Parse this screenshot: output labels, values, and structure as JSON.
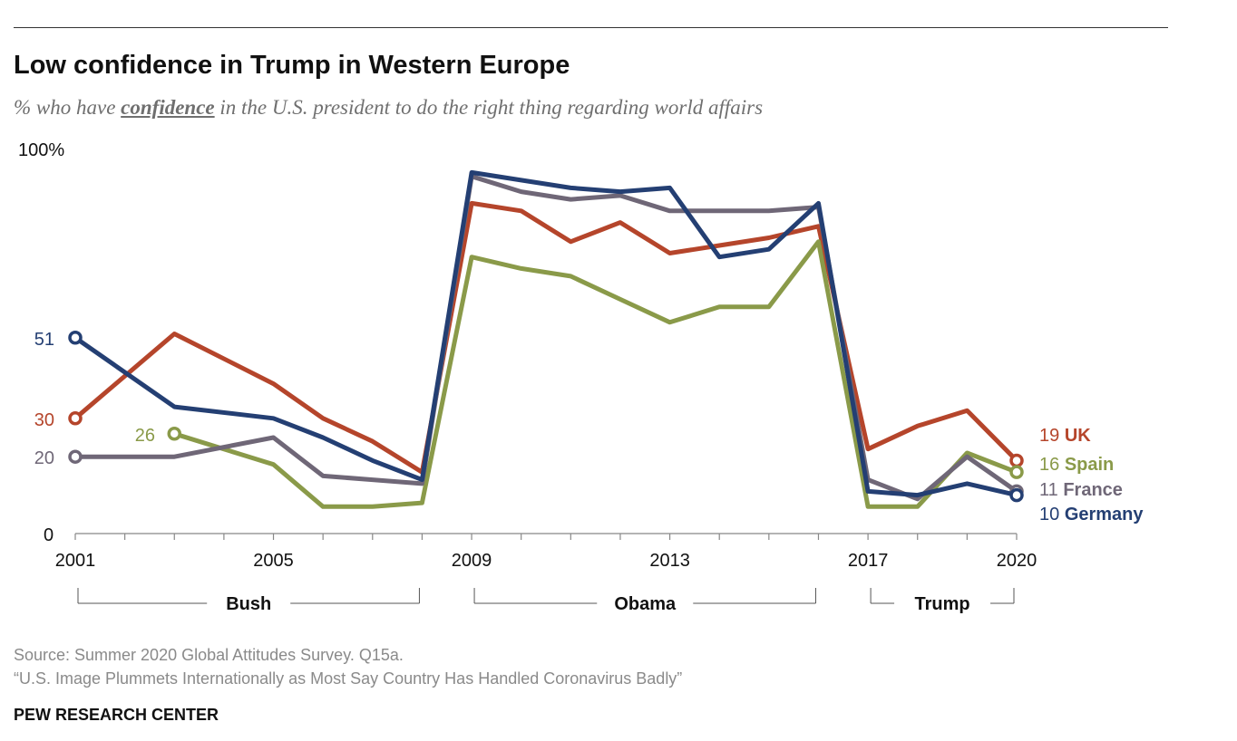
{
  "header": {
    "title": "Low confidence in Trump in Western Europe",
    "subtitle_pre": "% who have ",
    "subtitle_em": "confidence",
    "subtitle_post": " in the U.S. president to do the right thing regarding world affairs"
  },
  "chart_data": {
    "type": "line",
    "title": "Low confidence in Trump in Western Europe",
    "ylim": [
      0,
      100
    ],
    "y_top_label": "100%",
    "y_zero_label": "0",
    "x": [
      2001,
      2002,
      2003,
      2004,
      2005,
      2006,
      2007,
      2008,
      2009,
      2010,
      2011,
      2012,
      2013,
      2014,
      2015,
      2016,
      2017,
      2018,
      2019,
      2020
    ],
    "x_tick_labels": [
      "2001",
      "2005",
      "2009",
      "2013",
      "2017",
      "2020"
    ],
    "x_tick_values": [
      2001,
      2005,
      2009,
      2013,
      2017,
      2020
    ],
    "series": [
      {
        "name": "UK",
        "color": "#b5452b",
        "start_label": "30",
        "end_label_value": "19",
        "end_label_name": "UK",
        "values": [
          30,
          null,
          52,
          null,
          39,
          30,
          24,
          16,
          86,
          84,
          76,
          81,
          73,
          75,
          77,
          80,
          22,
          28,
          32,
          19
        ]
      },
      {
        "name": "Spain",
        "color": "#8a9a49",
        "start_label": "26",
        "end_label_value": "16",
        "end_label_name": "Spain",
        "values": [
          null,
          null,
          26,
          null,
          18,
          7,
          7,
          8,
          72,
          69,
          67,
          61,
          55,
          59,
          59,
          76,
          7,
          7,
          21,
          16
        ]
      },
      {
        "name": "France",
        "color": "#6f6777",
        "start_label": "20",
        "end_label_value": "11",
        "end_label_name": "France",
        "values": [
          20,
          null,
          20,
          null,
          25,
          15,
          14,
          13,
          93,
          89,
          87,
          88,
          84,
          84,
          84,
          85,
          14,
          9,
          20,
          11
        ]
      },
      {
        "name": "Germany",
        "color": "#243f73",
        "start_label": "51",
        "end_label_value": "10",
        "end_label_name": "Germany",
        "values": [
          51,
          null,
          33,
          null,
          30,
          25,
          19,
          14,
          94,
          92,
          90,
          89,
          90,
          72,
          74,
          86,
          11,
          10,
          13,
          10
        ]
      }
    ],
    "eras": [
      {
        "label": "Bush",
        "from": 2001,
        "to": 2008
      },
      {
        "label": "Obama",
        "from": 2009,
        "to": 2016
      },
      {
        "label": "Trump",
        "from": 2017,
        "to": 2020
      }
    ]
  },
  "footer": {
    "source": "Source: Summer 2020 Global Attitudes Survey. Q15a.",
    "report": "“U.S. Image Plummets Internationally as Most Say Country Has Handled Coronavirus Badly”",
    "brand": "PEW RESEARCH CENTER"
  }
}
